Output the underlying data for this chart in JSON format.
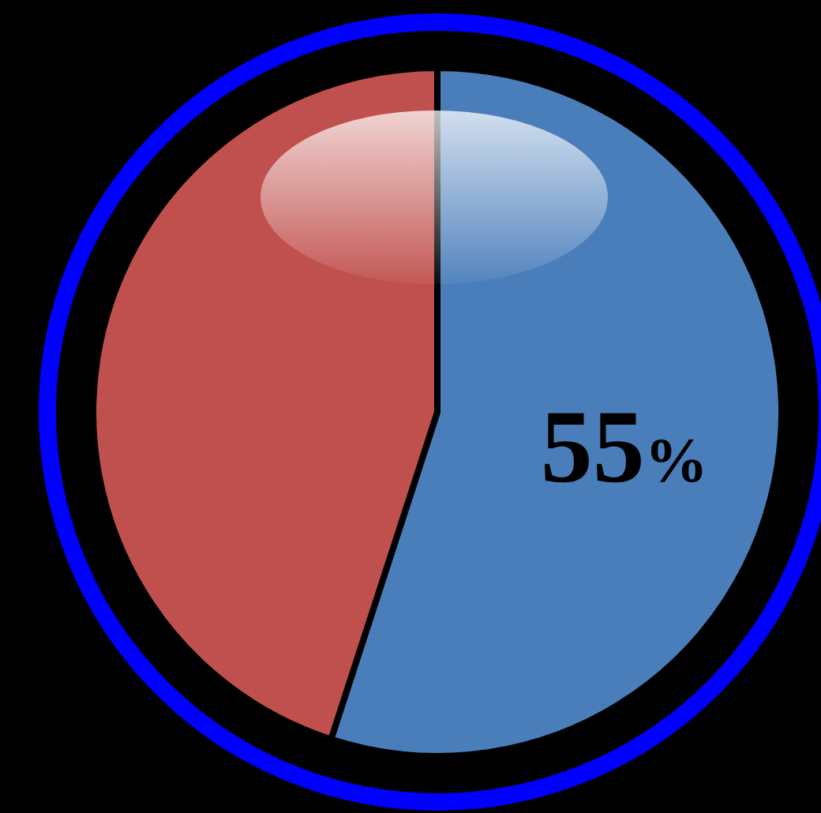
{
  "chart_data": {
    "type": "pie",
    "categories": [
      null,
      null
    ],
    "values": [
      55,
      45
    ],
    "colors": [
      "#4a7ebb",
      "#c0504d"
    ],
    "value_labels": [
      "55%",
      null
    ]
  }
}
